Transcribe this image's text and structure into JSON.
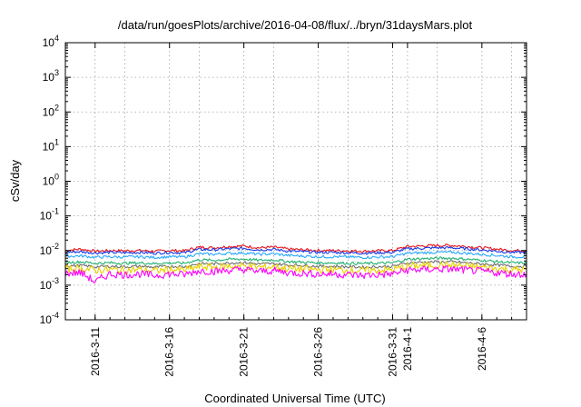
{
  "chart_data": {
    "type": "line",
    "title": "/data/run/goesPlots/archive/2016-04-08/flux/../bryn/31daysMars.plot",
    "xlabel": "Coordinated Universal Time (UTC)",
    "ylabel": "cSv/day",
    "x_range": [
      "2016-03-09",
      "2016-04-09"
    ],
    "ylim": [
      0.0001,
      10000
    ],
    "y_scale": "log",
    "grid": true,
    "y_ticks": [
      {
        "base": "10",
        "exp": "4",
        "value": 10000
      },
      {
        "base": "10",
        "exp": "3",
        "value": 1000
      },
      {
        "base": "10",
        "exp": "2",
        "value": 100
      },
      {
        "base": "10",
        "exp": "1",
        "value": 10
      },
      {
        "base": "10",
        "exp": "0",
        "value": 1
      },
      {
        "base": "10",
        "exp": "-1",
        "value": 0.1
      },
      {
        "base": "10",
        "exp": "-2",
        "value": 0.01
      },
      {
        "base": "10",
        "exp": "-3",
        "value": 0.001
      },
      {
        "base": "10",
        "exp": "-4",
        "value": 0.0001
      }
    ],
    "x_ticks": [
      {
        "label": "2016-3-11",
        "date": "2016-03-11"
      },
      {
        "label": "2016-3-16",
        "date": "2016-03-16"
      },
      {
        "label": "2016-3-21",
        "date": "2016-03-21"
      },
      {
        "label": "2016-3-26",
        "date": "2016-03-26"
      },
      {
        "label": "2016-3-31",
        "date": "2016-03-31"
      },
      {
        "label": "2016-4-1",
        "date": "2016-04-01"
      },
      {
        "label": "2016-4-6",
        "date": "2016-04-06"
      }
    ],
    "x_grid_dates": [
      "2016-03-11",
      "2016-03-13",
      "2016-03-16",
      "2016-03-18",
      "2016-03-21",
      "2016-03-23",
      "2016-03-26",
      "2016-03-28",
      "2016-03-31",
      "2016-04-01",
      "2016-04-03",
      "2016-04-06",
      "2016-04-08"
    ],
    "x": [
      "2016-03-09",
      "2016-03-10",
      "2016-03-11",
      "2016-03-12",
      "2016-03-13",
      "2016-03-14",
      "2016-03-15",
      "2016-03-16",
      "2016-03-17",
      "2016-03-18",
      "2016-03-19",
      "2016-03-20",
      "2016-03-21",
      "2016-03-22",
      "2016-03-23",
      "2016-03-24",
      "2016-03-25",
      "2016-03-26",
      "2016-03-27",
      "2016-03-28",
      "2016-03-29",
      "2016-03-30",
      "2016-03-31",
      "2016-04-01",
      "2016-04-02",
      "2016-04-03",
      "2016-04-04",
      "2016-04-05",
      "2016-04-06",
      "2016-04-07",
      "2016-04-08",
      "2016-04-09"
    ],
    "series": [
      {
        "color": "#e8141a",
        "values": [
          0.01,
          0.011,
          0.0095,
          0.01,
          0.0098,
          0.01,
          0.0095,
          0.01,
          0.0098,
          0.0125,
          0.012,
          0.013,
          0.0135,
          0.012,
          0.0125,
          0.011,
          0.0105,
          0.01,
          0.01,
          0.0098,
          0.0095,
          0.0098,
          0.01,
          0.013,
          0.0135,
          0.014,
          0.014,
          0.013,
          0.012,
          0.011,
          0.01,
          0.01
        ]
      },
      {
        "color": "#1a3ae8",
        "values": [
          0.009,
          0.0092,
          0.0085,
          0.0088,
          0.0086,
          0.0088,
          0.0084,
          0.0088,
          0.0086,
          0.0108,
          0.0105,
          0.0112,
          0.0115,
          0.0105,
          0.0108,
          0.0096,
          0.0092,
          0.0088,
          0.0088,
          0.0086,
          0.0084,
          0.0086,
          0.0088,
          0.0112,
          0.0116,
          0.012,
          0.012,
          0.0112,
          0.0104,
          0.0096,
          0.0088,
          0.0088
        ]
      },
      {
        "color": "#2aa8ff",
        "values": [
          0.0068,
          0.007,
          0.0064,
          0.0066,
          0.0065,
          0.0066,
          0.0063,
          0.0066,
          0.0065,
          0.008,
          0.0078,
          0.0083,
          0.0085,
          0.0078,
          0.008,
          0.0072,
          0.0069,
          0.0066,
          0.0066,
          0.0065,
          0.0063,
          0.0065,
          0.0066,
          0.0083,
          0.0086,
          0.0089,
          0.0089,
          0.0083,
          0.0077,
          0.0072,
          0.0066,
          0.0066
        ]
      },
      {
        "color": "#20b070",
        "values": [
          0.0045,
          0.0047,
          0.0043,
          0.0044,
          0.0043,
          0.0044,
          0.0042,
          0.0044,
          0.0043,
          0.0054,
          0.0052,
          0.0056,
          0.0057,
          0.0052,
          0.0054,
          0.0048,
          0.0046,
          0.0044,
          0.0044,
          0.0043,
          0.0042,
          0.0043,
          0.0044,
          0.0056,
          0.0058,
          0.006,
          0.006,
          0.0056,
          0.0052,
          0.0048,
          0.0044,
          0.0044
        ]
      },
      {
        "color": "#707070",
        "values": [
          0.0036,
          0.0037,
          0.0034,
          0.0035,
          0.0034,
          0.0035,
          0.0033,
          0.0035,
          0.0034,
          0.0042,
          0.0041,
          0.0044,
          0.0045,
          0.0041,
          0.0042,
          0.0038,
          0.0037,
          0.0035,
          0.0035,
          0.0034,
          0.0033,
          0.0034,
          0.0035,
          0.0044,
          0.0046,
          0.0047,
          0.0047,
          0.0044,
          0.0041,
          0.0038,
          0.0035,
          0.0035
        ]
      },
      {
        "color": "#e8d000",
        "values": [
          0.0029,
          0.003,
          0.0027,
          0.0028,
          0.0027,
          0.0028,
          0.0026,
          0.0028,
          0.0027,
          0.0034,
          0.0033,
          0.0035,
          0.0036,
          0.0033,
          0.0034,
          0.003,
          0.0029,
          0.0028,
          0.0028,
          0.0027,
          0.0026,
          0.0027,
          0.0028,
          0.0035,
          0.0037,
          0.0038,
          0.0038,
          0.0035,
          0.0033,
          0.003,
          0.0028,
          0.0028
        ]
      },
      {
        "color": "#ff00ff",
        "values": [
          0.0022,
          0.0023,
          0.0012,
          0.0021,
          0.002,
          0.0021,
          0.0019,
          0.0021,
          0.002,
          0.0026,
          0.0025,
          0.0027,
          0.0028,
          0.0025,
          0.0026,
          0.0023,
          0.0022,
          0.0021,
          0.0021,
          0.002,
          0.0019,
          0.002,
          0.0021,
          0.0027,
          0.0028,
          0.0029,
          0.0029,
          0.0027,
          0.0025,
          0.0023,
          0.0021,
          0.0021
        ]
      }
    ]
  }
}
